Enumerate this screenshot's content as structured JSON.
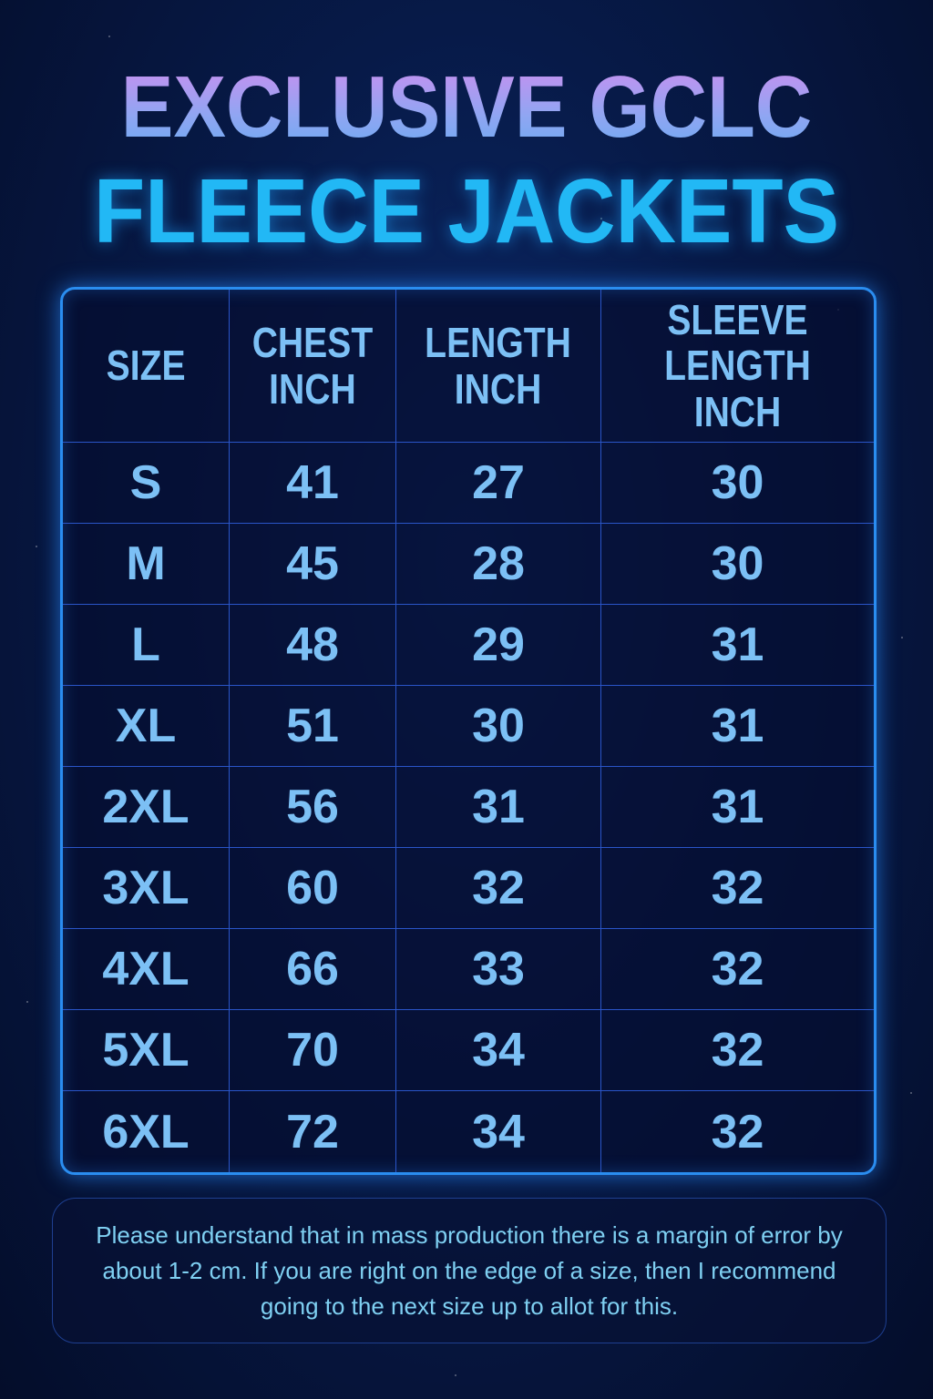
{
  "title": {
    "line1": "EXCLUSIVE GCLC",
    "line2": "FLEECE JACKETS"
  },
  "colors": {
    "title_line1": "#a99cf0",
    "title_line2": "#22b8f5",
    "table_border": "#2a8df0",
    "text": "#7cc0f5",
    "background": "#071a48"
  },
  "table": {
    "headers": [
      "SIZE",
      "CHEST\nINCH",
      "LENGTH\nINCH",
      "SLEEVE\nLENGTH INCH"
    ],
    "rows": [
      [
        "S",
        "41",
        "27",
        "30"
      ],
      [
        "M",
        "45",
        "28",
        "30"
      ],
      [
        "L",
        "48",
        "29",
        "31"
      ],
      [
        "XL",
        "51",
        "30",
        "31"
      ],
      [
        "2XL",
        "56",
        "31",
        "31"
      ],
      [
        "3XL",
        "60",
        "32",
        "32"
      ],
      [
        "4XL",
        "66",
        "33",
        "32"
      ],
      [
        "5XL",
        "70",
        "34",
        "32"
      ],
      [
        "6XL",
        "72",
        "34",
        "32"
      ]
    ]
  },
  "note": "Please understand that in mass production there is a margin of error by about 1-2 cm. If you are right on the edge of a size, then I recommend going to the next size up to allot for this."
}
